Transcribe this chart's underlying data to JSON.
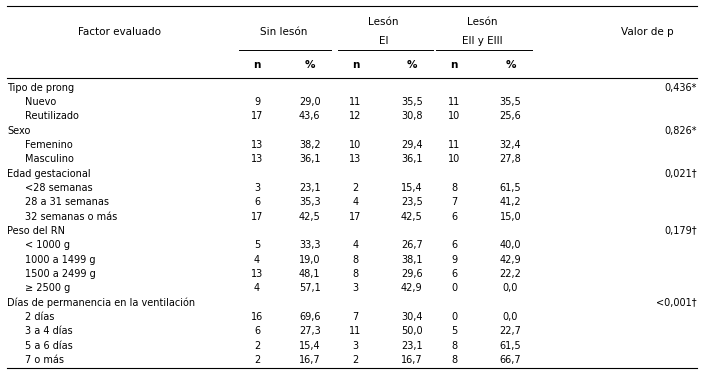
{
  "groups": [
    {
      "label": "Tipo de prong",
      "p_value": "0,436*",
      "subrows": [
        [
          "Nuevo",
          "9",
          "29,0",
          "11",
          "35,5",
          "11",
          "35,5"
        ],
        [
          "Reutilizado",
          "17",
          "43,6",
          "12",
          "30,8",
          "10",
          "25,6"
        ]
      ]
    },
    {
      "label": "Sexo",
      "p_value": "0,826*",
      "subrows": [
        [
          "Femenino",
          "13",
          "38,2",
          "10",
          "29,4",
          "11",
          "32,4"
        ],
        [
          "Masculino",
          "13",
          "36,1",
          "13",
          "36,1",
          "10",
          "27,8"
        ]
      ]
    },
    {
      "label": "Edad gestacional",
      "p_value": "0,021†",
      "subrows": [
        [
          "<28 semanas",
          "3",
          "23,1",
          "2",
          "15,4",
          "8",
          "61,5"
        ],
        [
          "28 a 31 semanas",
          "6",
          "35,3",
          "4",
          "23,5",
          "7",
          "41,2"
        ],
        [
          "32 semanas o más",
          "17",
          "42,5",
          "17",
          "42,5",
          "6",
          "15,0"
        ]
      ]
    },
    {
      "label": "Peso del RN",
      "p_value": "0,179†",
      "subrows": [
        [
          "< 1000 g",
          "5",
          "33,3",
          "4",
          "26,7",
          "6",
          "40,0"
        ],
        [
          "1000 a 1499 g",
          "4",
          "19,0",
          "8",
          "38,1",
          "9",
          "42,9"
        ],
        [
          "1500 a 2499 g",
          "13",
          "48,1",
          "8",
          "29,6",
          "6",
          "22,2"
        ],
        [
          "≥ 2500 g",
          "4",
          "57,1",
          "3",
          "42,9",
          "0",
          "0,0"
        ]
      ]
    },
    {
      "label": "Días de permanencia en la ventilación",
      "p_value": "<0,001†",
      "subrows": [
        [
          "2 días",
          "16",
          "69,6",
          "7",
          "30,4",
          "0",
          "0,0"
        ],
        [
          "3 a 4 días",
          "6",
          "27,3",
          "11",
          "50,0",
          "5",
          "22,7"
        ],
        [
          "5 a 6 días",
          "2",
          "15,4",
          "3",
          "23,1",
          "8",
          "61,5"
        ],
        [
          "7 o más",
          "2",
          "16,7",
          "2",
          "16,7",
          "8",
          "66,7"
        ]
      ]
    }
  ],
  "bg_color": "#ffffff",
  "text_color": "#000000",
  "font_size": 7.0,
  "header_font_size": 7.5
}
